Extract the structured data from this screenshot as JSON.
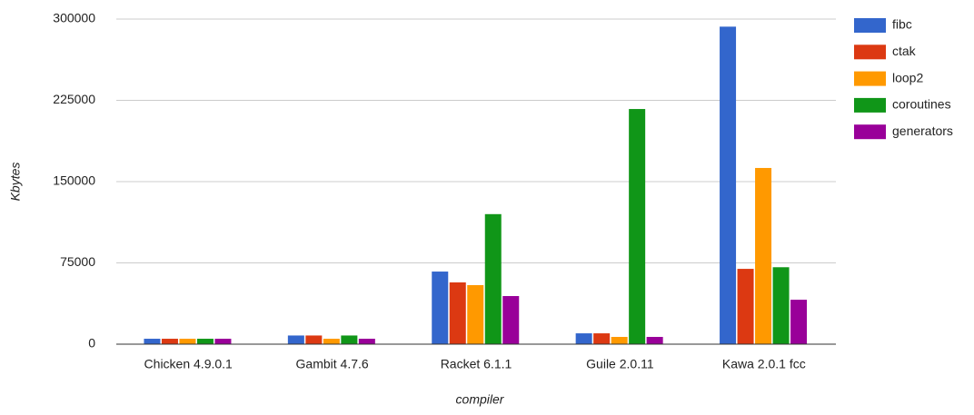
{
  "chart_data": {
    "type": "bar",
    "x_label": "compiler",
    "y_label": "Kbytes",
    "categories": [
      "Chicken 4.9.0.1",
      "Gambit 4.7.6",
      "Racket 6.1.1",
      "Guile 2.0.11",
      "Kawa 2.0.1 fcc"
    ],
    "series": [
      {
        "name": "fibc",
        "color": "#3366cc",
        "values": [
          5000,
          8000,
          67000,
          10000,
          293000
        ]
      },
      {
        "name": "ctak",
        "color": "#dc3912",
        "values": [
          5000,
          8000,
          57000,
          10000,
          69500
        ]
      },
      {
        "name": "loop2",
        "color": "#ff9900",
        "values": [
          5000,
          5000,
          54500,
          6700,
          162600
        ]
      },
      {
        "name": "coroutines",
        "color": "#109618",
        "values": [
          5000,
          8000,
          120000,
          217000,
          71000
        ]
      },
      {
        "name": "generators",
        "color": "#990099",
        "values": [
          5000,
          5000,
          44400,
          6700,
          41000
        ]
      }
    ],
    "ylim": [
      0,
      300000
    ],
    "yticks": [
      0,
      75000,
      150000,
      225000,
      300000
    ],
    "grid": true,
    "legend": "right"
  }
}
